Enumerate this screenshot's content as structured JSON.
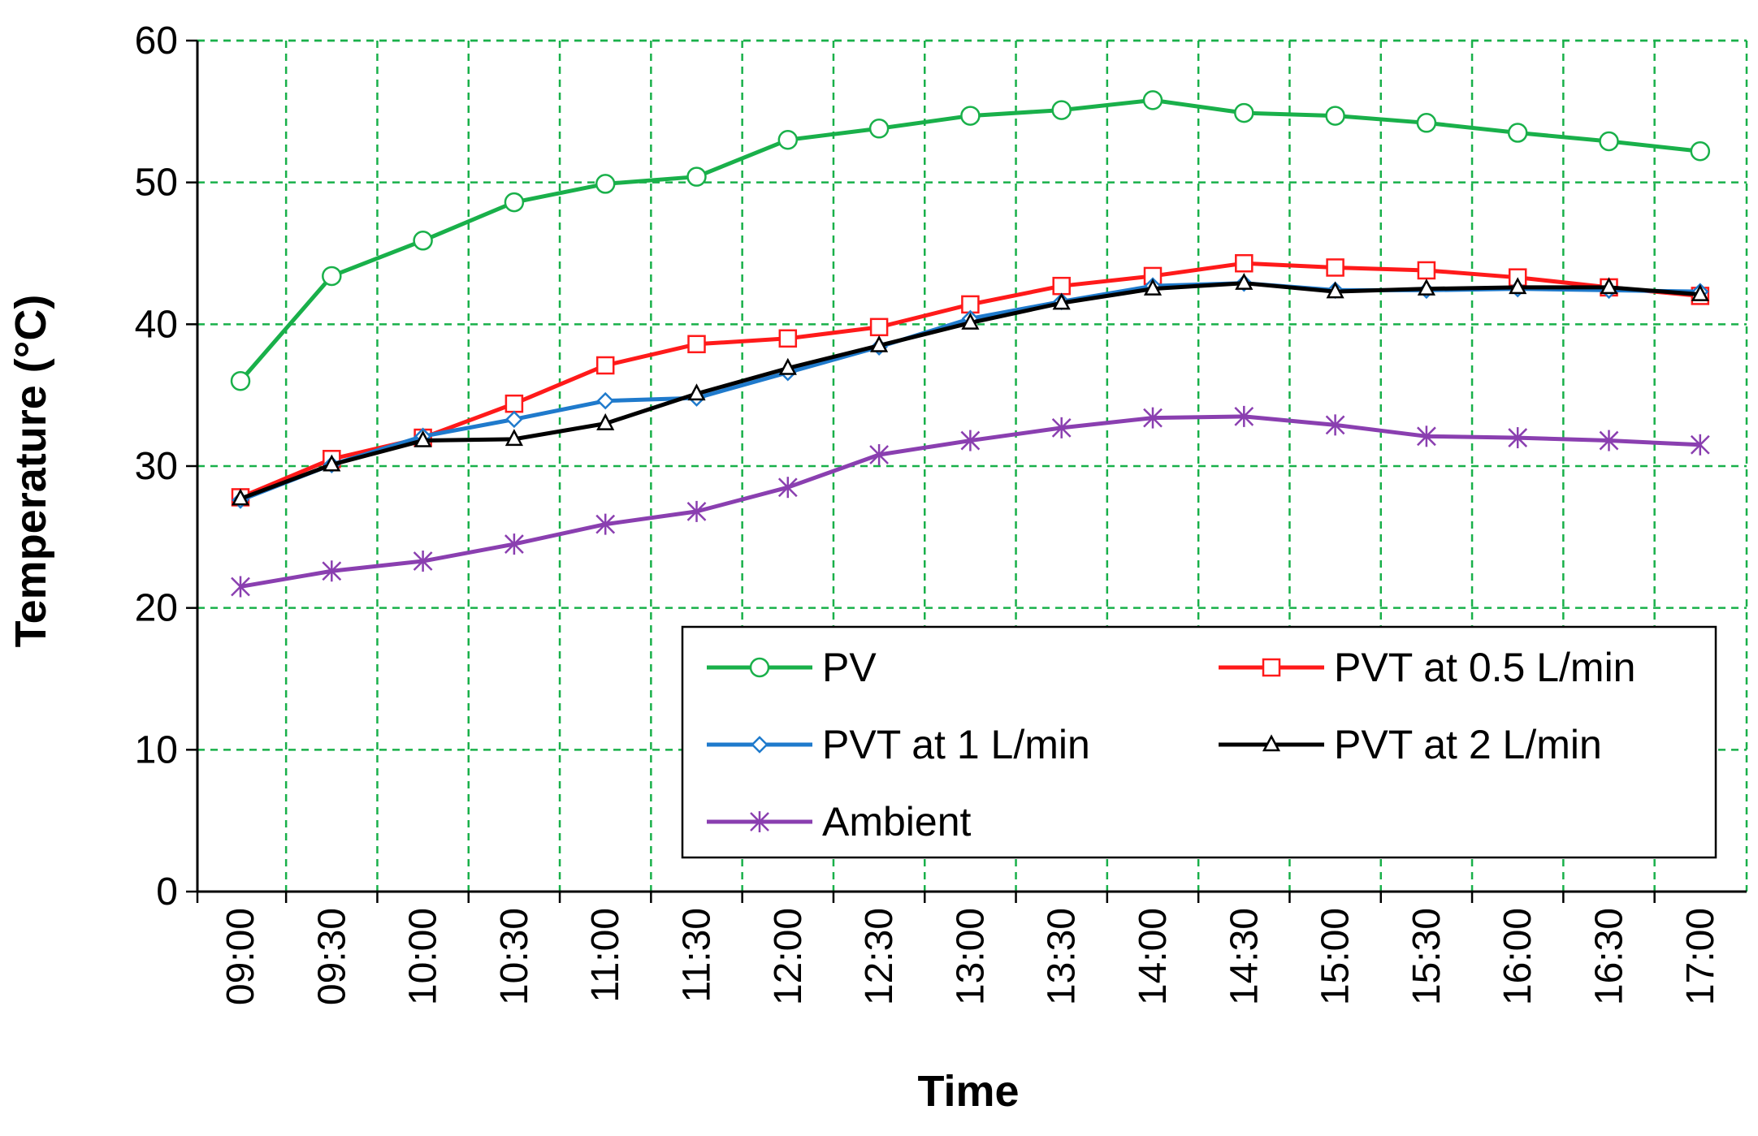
{
  "chart_data": {
    "type": "line",
    "title": "",
    "xlabel": "Time",
    "ylabel": "Temperature (°C)",
    "ylim": [
      0,
      60
    ],
    "yticks": [
      0,
      10,
      20,
      30,
      40,
      50,
      60
    ],
    "grid": true,
    "legend_position": "bottom-right",
    "categories": [
      "09:00",
      "09:30",
      "10:00",
      "10:30",
      "11:00",
      "11:30",
      "12:00",
      "12:30",
      "13:00",
      "13:30",
      "14:00",
      "14:30",
      "15:00",
      "15:30",
      "16:00",
      "16:30",
      "17:00"
    ],
    "series": [
      {
        "name": "PV",
        "color": "#19b04a",
        "marker": "circle",
        "values": [
          36.0,
          43.4,
          45.9,
          48.6,
          49.9,
          50.4,
          53.0,
          53.8,
          54.7,
          55.1,
          55.8,
          54.9,
          54.7,
          54.2,
          53.5,
          52.9,
          52.2
        ]
      },
      {
        "name": "PVT at 0.5 L/min",
        "color": "#ff1a1a",
        "marker": "square",
        "values": [
          27.8,
          30.5,
          32.0,
          34.4,
          37.1,
          38.6,
          39.0,
          39.8,
          41.4,
          42.7,
          43.4,
          44.3,
          44.0,
          43.8,
          43.3,
          42.6,
          42.0
        ]
      },
      {
        "name": "PVT at 1 L/min",
        "color": "#1f7acc",
        "marker": "diamond",
        "values": [
          27.6,
          30.1,
          32.1,
          33.3,
          34.6,
          34.8,
          36.6,
          38.4,
          40.4,
          41.6,
          42.7,
          42.9,
          42.4,
          42.4,
          42.5,
          42.4,
          42.3
        ]
      },
      {
        "name": "PVT at 2 L/min",
        "color": "#000000",
        "marker": "triangle",
        "values": [
          27.7,
          30.1,
          31.8,
          31.9,
          33.0,
          35.1,
          36.9,
          38.5,
          40.1,
          41.5,
          42.5,
          42.9,
          42.3,
          42.5,
          42.6,
          42.6,
          42.1
        ]
      },
      {
        "name": "Ambient",
        "color": "#8a3fb0",
        "marker": "star",
        "values": [
          21.5,
          22.6,
          23.3,
          24.5,
          25.9,
          26.8,
          28.5,
          30.8,
          31.8,
          32.7,
          33.4,
          33.5,
          32.9,
          32.1,
          32.0,
          31.8,
          31.5
        ]
      }
    ]
  }
}
